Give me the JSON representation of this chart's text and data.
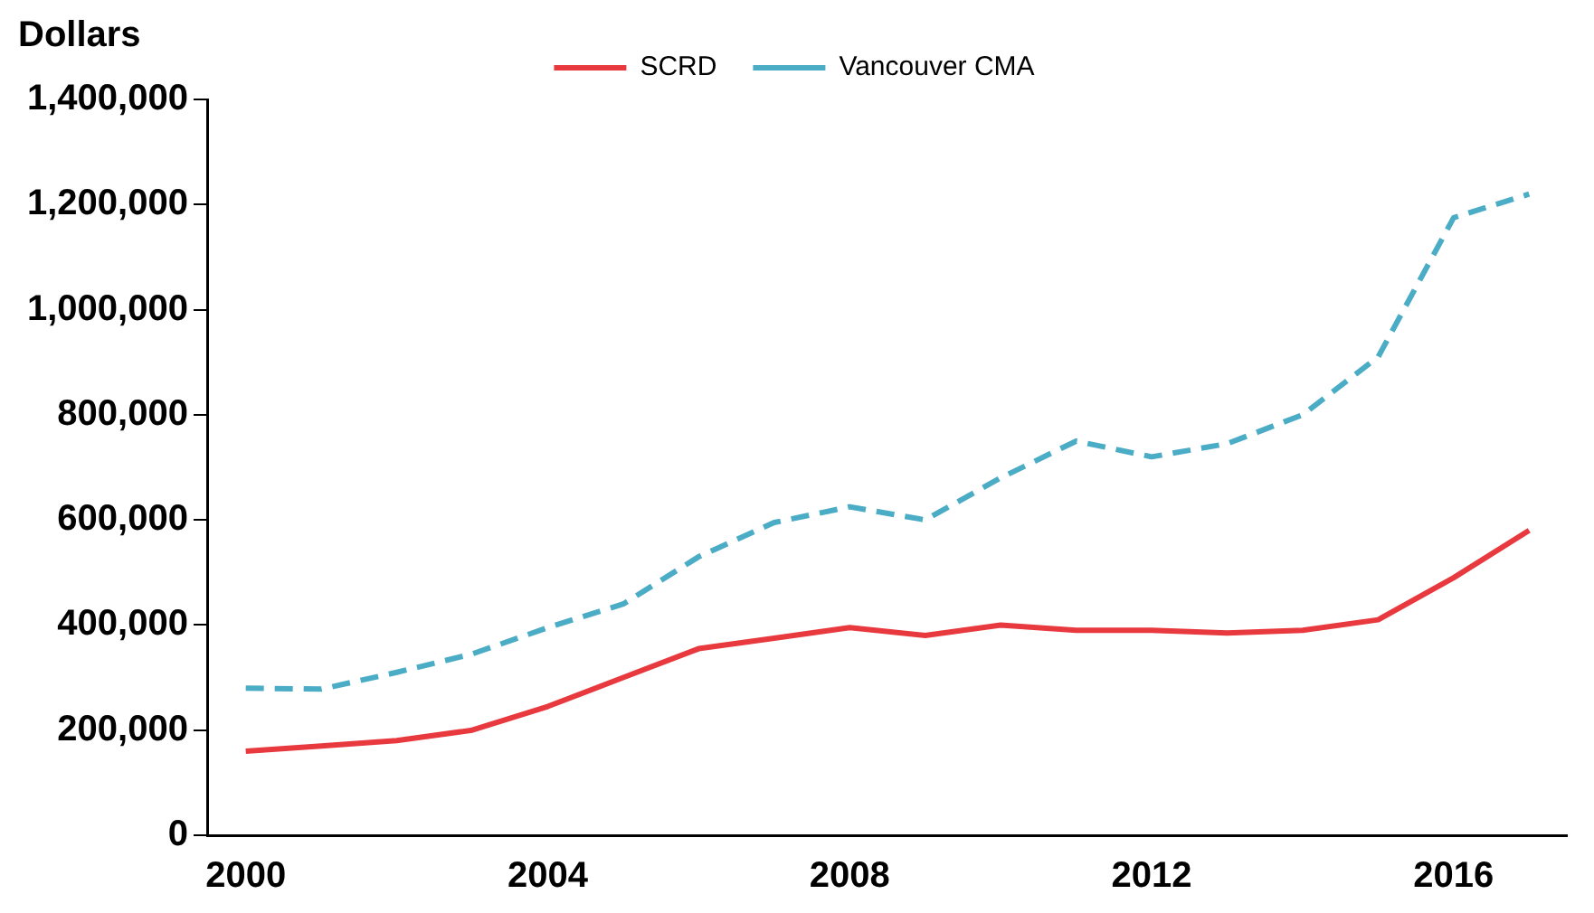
{
  "chart_data": {
    "type": "line",
    "ylabel": "Dollars",
    "categories": [
      "2000",
      null,
      null,
      null,
      "2004",
      null,
      null,
      null,
      "2008",
      null,
      null,
      null,
      "2012",
      null,
      null,
      null,
      "2016",
      null
    ],
    "series": [
      {
        "name": "SCRD",
        "color": "#e8393f",
        "line_style": "solid",
        "values": [
          160000,
          170000,
          180000,
          200000,
          245000,
          300000,
          355000,
          375000,
          395000,
          380000,
          400000,
          390000,
          390000,
          385000,
          390000,
          410000,
          490000,
          580000
        ]
      },
      {
        "name": "Vancouver CMA",
        "color": "#4bacc6",
        "line_style": "dashed",
        "values": [
          280000,
          278000,
          310000,
          345000,
          395000,
          440000,
          530000,
          595000,
          625000,
          600000,
          680000,
          750000,
          720000,
          745000,
          800000,
          910000,
          1175000,
          1220000
        ]
      }
    ],
    "ylim": [
      0,
      1400000
    ],
    "yticks": [
      0,
      {
        "value": 200000,
        "label": "200,000"
      },
      {
        "value": 400000,
        "label": "400,000"
      },
      {
        "value": 600000,
        "label": "600,000"
      },
      {
        "value": 800000,
        "label": "800,000"
      },
      {
        "value": 1000000,
        "label": "1,000,000"
      },
      {
        "value": 1200000,
        "label": "1,200,000"
      },
      {
        "value": 1400000,
        "label": "1,400,000"
      }
    ],
    "grid": false,
    "legend": "top",
    "marker": "none"
  }
}
